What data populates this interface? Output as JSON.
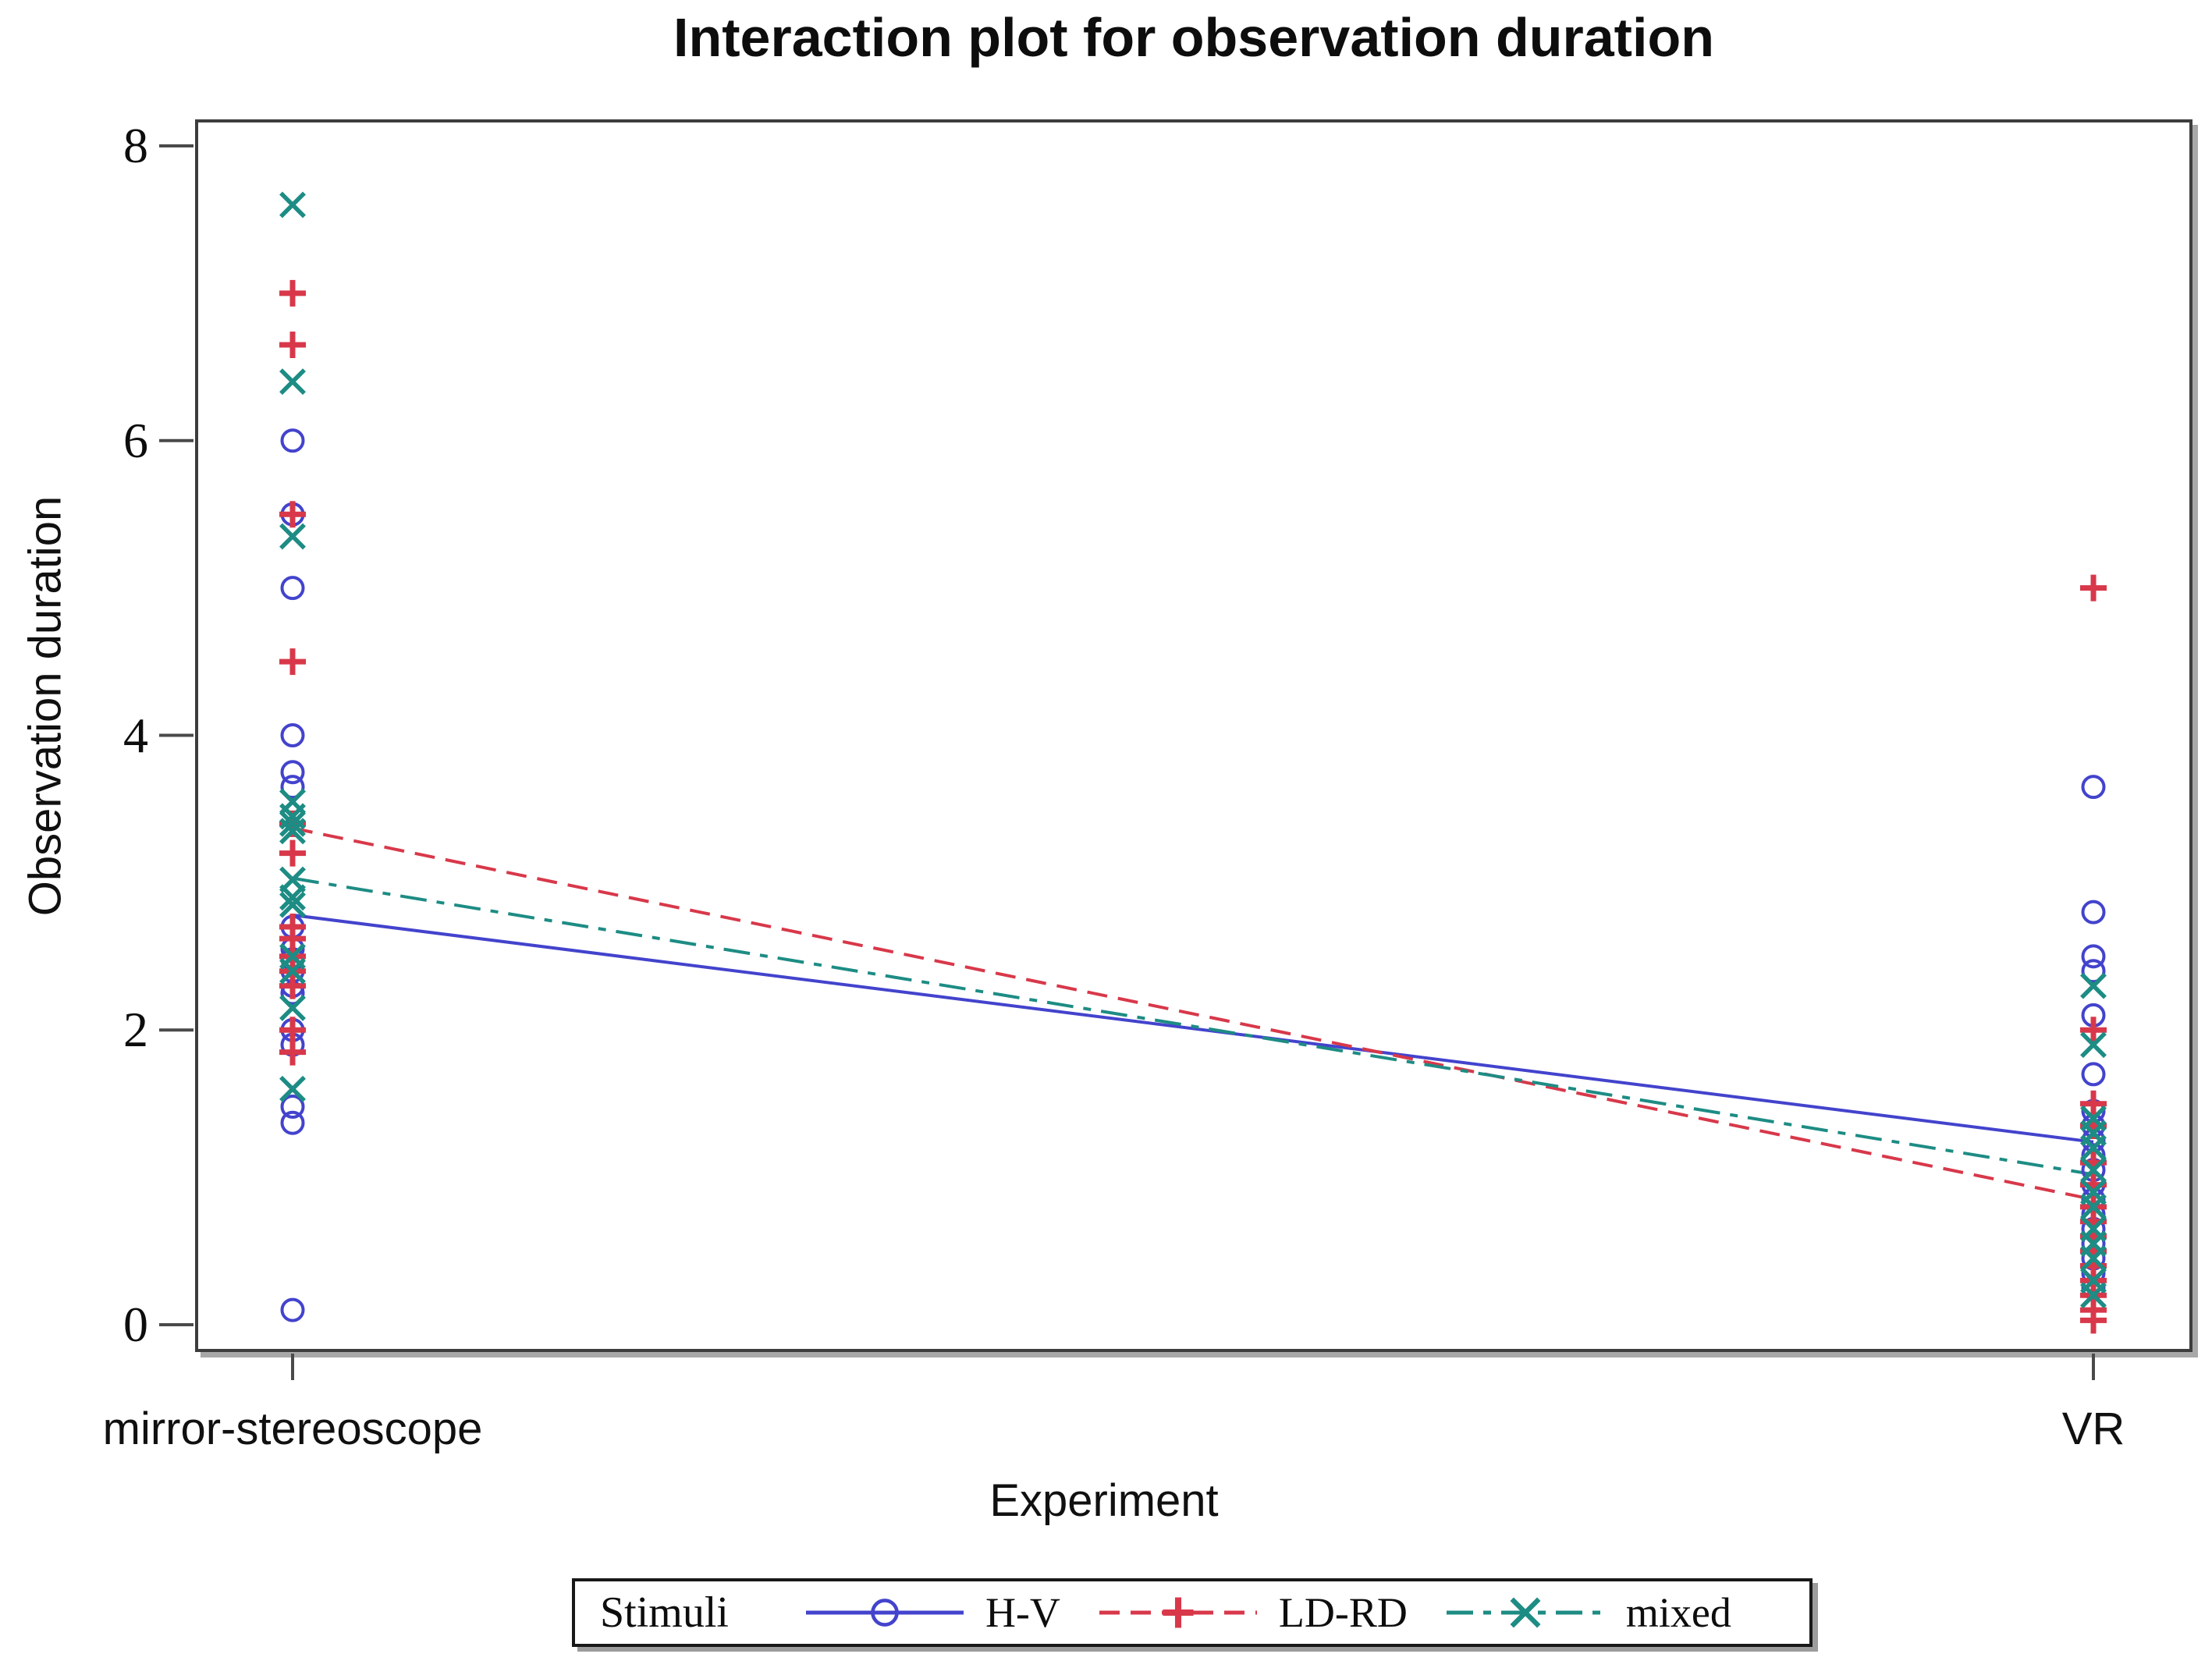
{
  "title": "Interaction plot for observation duration",
  "axes": {
    "x": {
      "title": "Experiment",
      "categories": [
        "mirror-stereoscope",
        "VR"
      ]
    },
    "y": {
      "title": "Observation duration",
      "min": 0,
      "max": 8,
      "ticks": [
        0,
        2,
        4,
        6,
        8
      ]
    }
  },
  "legend": {
    "title": "Stimuli",
    "position": "bottom",
    "items": [
      {
        "label": "H-V",
        "marker": "circle",
        "line": "solid",
        "color": "#4343cd"
      },
      {
        "label": "LD-RD",
        "marker": "plus",
        "line": "dashed",
        "color": "#d8384a"
      },
      {
        "label": "mixed",
        "marker": "x",
        "line": "dashdot",
        "color": "#1d8c84"
      }
    ]
  },
  "chart_data": {
    "type": "scatter",
    "title": "Interaction plot for observation duration",
    "xlabel": "Experiment",
    "ylabel": "Observation duration",
    "ylim": [
      0,
      8
    ],
    "yticks": [
      0,
      2,
      4,
      6,
      8
    ],
    "grid": false,
    "legend_position": "bottom",
    "categories": [
      "mirror-stereoscope",
      "VR"
    ],
    "series": [
      {
        "name": "H-V",
        "marker": "circle",
        "line": "solid",
        "color": "#4343cd",
        "data": [
          [
            6.0,
            5.5,
            5.0,
            4.0,
            3.75,
            3.65,
            2.7,
            2.55,
            2.48,
            2.4,
            2.3,
            2.25,
            2.0,
            1.9,
            1.48,
            1.37,
            0.1
          ],
          [
            3.65,
            2.8,
            2.5,
            2.4,
            2.1,
            1.7,
            1.45,
            1.35,
            1.25,
            1.15,
            1.05,
            0.95,
            0.85,
            0.75,
            0.65,
            0.55,
            0.45,
            0.35,
            0.25
          ]
        ],
        "mean": [
          2.78,
          1.24
        ]
      },
      {
        "name": "LD-RD",
        "marker": "plus",
        "line": "dashed",
        "color": "#d8384a",
        "data": [
          [
            7.0,
            6.65,
            5.5,
            4.5,
            3.4,
            3.2,
            2.7,
            2.62,
            2.5,
            2.4,
            2.3,
            2.0,
            1.85
          ],
          [
            5.0,
            2.0,
            1.5,
            1.35,
            1.1,
            0.95,
            0.8,
            0.7,
            0.6,
            0.5,
            0.4,
            0.3,
            0.2,
            0.1,
            0.03
          ]
        ],
        "mean": [
          3.37,
          0.85
        ]
      },
      {
        "name": "mixed",
        "marker": "x",
        "line": "dashdot",
        "color": "#1d8c84",
        "data": [
          [
            7.6,
            6.4,
            5.35,
            3.55,
            3.45,
            3.4,
            3.35,
            3.02,
            2.9,
            2.85,
            2.5,
            2.4,
            2.15,
            1.6
          ],
          [
            2.3,
            1.9,
            1.4,
            1.3,
            1.2,
            1.05,
            0.9,
            0.8,
            0.65,
            0.55,
            0.45,
            0.3,
            0.2
          ]
        ],
        "mean": [
          3.03,
          1.02
        ]
      }
    ]
  }
}
